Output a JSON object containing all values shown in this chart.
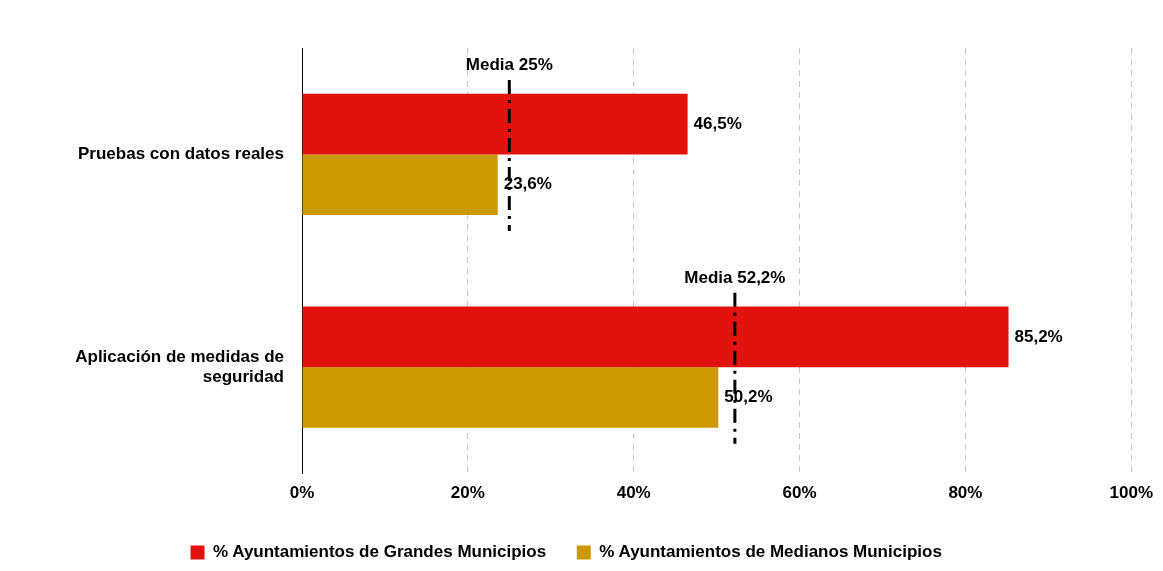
{
  "chart_data": {
    "type": "bar",
    "orientation": "horizontal",
    "categories": [
      "Pruebas con datos reales",
      "Aplicación de medidas de seguridad"
    ],
    "series": [
      {
        "name": "% Ayuntamientos de Grandes Municipios",
        "color": "#e2120e",
        "values": [
          46.5,
          85.2
        ],
        "value_labels": [
          "46,5%",
          "85,2%"
        ]
      },
      {
        "name": "% Ayuntamientos de Medianos Municipios",
        "color": "#cc9900",
        "values": [
          23.6,
          50.2
        ],
        "value_labels": [
          "23,6%",
          "50,2%"
        ]
      }
    ],
    "xlim": [
      0,
      100
    ],
    "xticks": [
      {
        "value": 0,
        "label": "0%"
      },
      {
        "value": 20,
        "label": "20%"
      },
      {
        "value": 40,
        "label": "40%"
      },
      {
        "value": 60,
        "label": "60%"
      },
      {
        "value": 80,
        "label": "80%"
      },
      {
        "value": 100,
        "label": "100%"
      }
    ],
    "ref_lines": [
      {
        "axis": "x",
        "value": 25,
        "label": "Media 25%",
        "line_style": "dashed",
        "color": "#000000"
      },
      {
        "axis": "x",
        "value": 52.2,
        "label": "Media 52,2%",
        "line_style": "dashed",
        "color": "#000000"
      }
    ],
    "grid": "x",
    "legend": "bottom"
  }
}
